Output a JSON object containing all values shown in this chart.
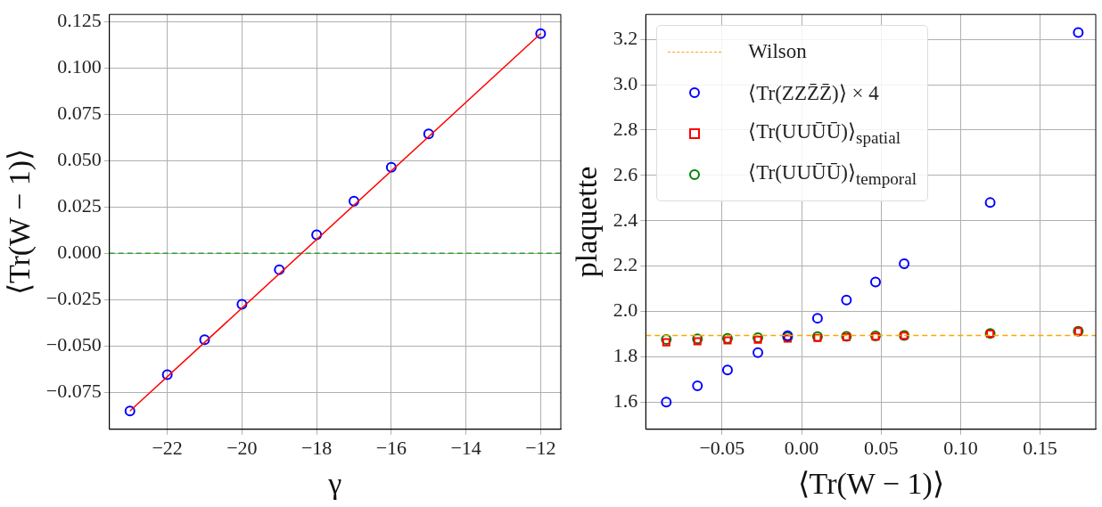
{
  "chart_data": [
    {
      "type": "scatter",
      "xlabel": "γ",
      "ylabel": "⟨Tr(W − 1)⟩",
      "grid": true,
      "x": [
        -23,
        -22,
        -21,
        -20,
        -19,
        -18,
        -17,
        -16,
        -15,
        -12
      ],
      "xlim": [
        -23.55,
        -11.46
      ],
      "ylim": [
        -0.095,
        0.129
      ],
      "xticks": [
        {
          "value": -22,
          "label": "−22"
        },
        {
          "value": -20,
          "label": "−20"
        },
        {
          "value": -18,
          "label": "−18"
        },
        {
          "value": -16,
          "label": "−16"
        },
        {
          "value": -14,
          "label": "−14"
        },
        {
          "value": -12,
          "label": "−12"
        }
      ],
      "yticks": [
        {
          "value": -0.075,
          "label": "−0.075"
        },
        {
          "value": -0.05,
          "label": "−0.050"
        },
        {
          "value": -0.025,
          "label": "−0.025"
        },
        {
          "value": 0,
          "label": "0.000"
        },
        {
          "value": 0.025,
          "label": "0.025"
        },
        {
          "value": 0.05,
          "label": "0.050"
        },
        {
          "value": 0.075,
          "label": "0.075"
        },
        {
          "value": 0.1,
          "label": "0.100"
        },
        {
          "value": 0.125,
          "label": "0.125"
        }
      ],
      "ref_lines": [
        {
          "axis": "y",
          "value": 0,
          "color": "#2ca02c",
          "line_style": "dashed"
        }
      ],
      "series": [
        {
          "type": "line",
          "marker": "none",
          "line_style": "solid",
          "color": "#ff0000",
          "x": [
            -23,
            -12
          ],
          "values": [
            -0.0851,
            0.1186
          ]
        },
        {
          "marker": "circle",
          "color": "#0000ff",
          "values": [
            -0.0851,
            -0.0655,
            -0.0466,
            -0.0275,
            -0.0088,
            0.01,
            0.0282,
            0.0465,
            0.0645,
            0.1186
          ]
        }
      ]
    },
    {
      "type": "scatter",
      "xlabel": "⟨Tr(W − 1)⟩",
      "ylabel": "plaquette",
      "grid": true,
      "legend": "top left",
      "x": [
        -0.0851,
        -0.0655,
        -0.0466,
        -0.0275,
        -0.0088,
        0.01,
        0.0282,
        0.0465,
        0.0645,
        0.1186,
        0.174
      ],
      "xlim": [
        -0.098,
        0.185
      ],
      "ylim": [
        1.48,
        3.31
      ],
      "xticks": [
        {
          "value": -0.05,
          "label": "−0.05"
        },
        {
          "value": 0,
          "label": "0.00"
        },
        {
          "value": 0.05,
          "label": "0.05"
        },
        {
          "value": 0.1,
          "label": "0.10"
        },
        {
          "value": 0.15,
          "label": "0.15"
        }
      ],
      "yticks": [
        1.6,
        1.8,
        {
          "value": 2,
          "label": "2.0"
        },
        2.2,
        2.4,
        2.6,
        2.8,
        {
          "value": 3,
          "label": "3.0"
        },
        3.2
      ],
      "series": [
        {
          "name": "Wilson",
          "type": "line",
          "marker": "none",
          "line_style": "dashed",
          "color": "#ffa500",
          "x": [
            -0.098,
            0.185
          ],
          "values": [
            1.894,
            1.894
          ]
        },
        {
          "name": "⟨Tr(ZZZ̄Z̄)⟩ × 4",
          "marker": "circle",
          "color": "#0000ff",
          "values": [
            1.6,
            1.672,
            1.742,
            1.818,
            1.893,
            1.97,
            2.05,
            2.13,
            2.21,
            2.48,
            3.23
          ]
        },
        {
          "name": "⟨Tr(UUŪŪ)⟩$_{spatial}$",
          "marker": "square",
          "color": "#ff0000",
          "values": [
            1.864,
            1.868,
            1.872,
            1.875,
            1.88,
            1.883,
            1.887,
            1.889,
            1.893,
            1.902,
            1.912
          ]
        },
        {
          "name": "⟨Tr(UUŪŪ)⟩$_{temporal}$",
          "marker": "circle",
          "color": "#008000",
          "values": [
            1.876,
            1.879,
            1.881,
            1.884,
            1.887,
            1.889,
            1.89,
            1.892,
            1.894,
            1.903,
            1.913
          ]
        }
      ]
    }
  ]
}
